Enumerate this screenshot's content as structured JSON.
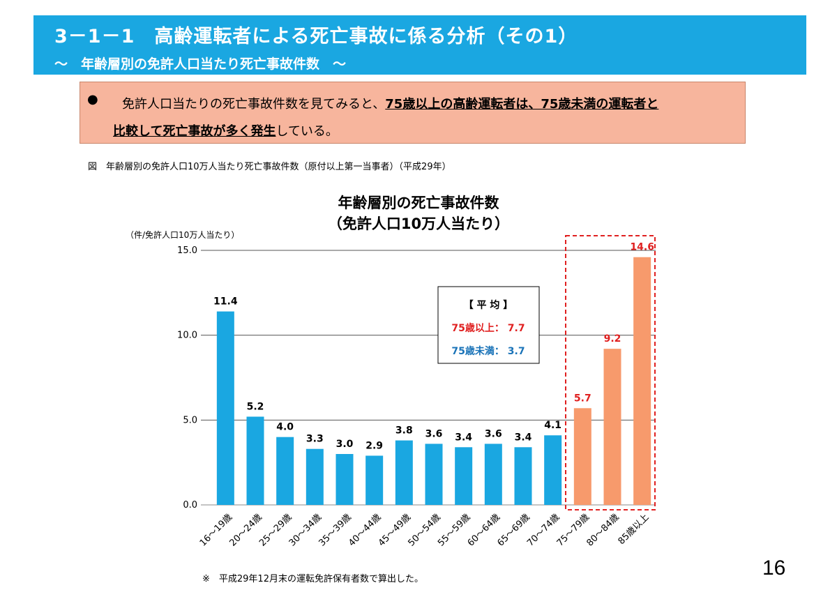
{
  "header": {
    "title": "3－1－1　高齢運転者による死亡事故に係る分析（その1）",
    "subtitle": "～　年齢層別の免許人口当たり死亡事故件数　～"
  },
  "callout": {
    "bullet": "●",
    "line1_plain": "免許人口当たりの死亡事故件数を見てみると、",
    "line1_emph": "75歳以上の高齢運転者は、75歳未満の運転者と",
    "line2_emph": "比較して死亡事故が多く発生",
    "line2_plain": "している。"
  },
  "figure_caption": "図　年齢層別の免許人口10万人当たり死亡事故件数（原付以上第一当事者）（平成29年）",
  "footnote": "※　平成29年12月末の運転免許保有者数で算出した。",
  "page_number": "16",
  "average_box": {
    "title": "【 平 均 】",
    "over75": "75歳以上： 7.7",
    "under75": "75歳未満： 3.7"
  },
  "colors": {
    "header_bg": "#1aa7e1",
    "callout_bg": "#f7b59d",
    "bar_under75": "#1aa7e1",
    "bar_over75": "#f79a6c",
    "label_over75": "#e02020",
    "label_under75": "#1a73b8"
  },
  "chart_data": {
    "type": "bar",
    "title_line1": "年齢層別の死亡事故件数",
    "title_line2": "（免許人口10万人当たり）",
    "ylabel": "（件/免許人口10万人当たり）",
    "ylim": [
      0,
      15
    ],
    "yticks": [
      "0.0",
      "5.0",
      "10.0",
      "15.0"
    ],
    "grid": true,
    "categories": [
      "16～19歳",
      "20～24歳",
      "25～29歳",
      "30～34歳",
      "35～39歳",
      "40～44歳",
      "45～49歳",
      "50～54歳",
      "55～59歳",
      "60～64歳",
      "65～69歳",
      "70～74歳",
      "75～79歳",
      "80～84歳",
      "85歳以上"
    ],
    "values": [
      11.4,
      5.2,
      4.0,
      3.3,
      3.0,
      2.9,
      3.8,
      3.6,
      3.4,
      3.6,
      3.4,
      4.1,
      5.7,
      9.2,
      14.6
    ],
    "value_labels": [
      "11.4",
      "5.2",
      "4.0",
      "3.3",
      "3.0",
      "2.9",
      "3.8",
      "3.6",
      "3.4",
      "3.6",
      "3.4",
      "4.1",
      "5.7",
      "9.2",
      "14.6"
    ],
    "highlight_start_index": 12
  }
}
